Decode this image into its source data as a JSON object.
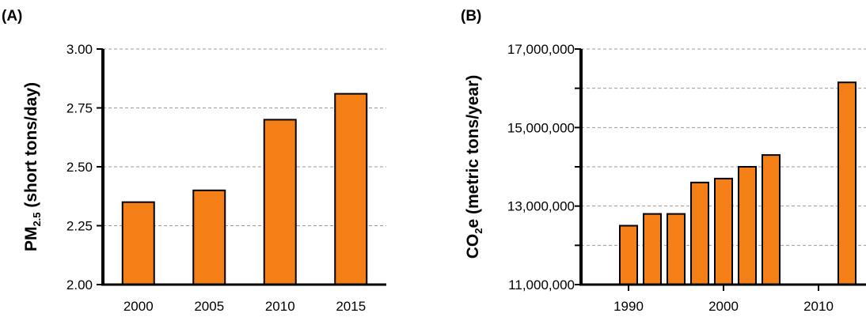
{
  "colors": {
    "bar_fill": "#F57F17",
    "bar_stroke": "#000000",
    "grid": "#999999"
  },
  "chart_data": [
    {
      "type": "bar",
      "panel_label": "(A)",
      "ylabel": {
        "main": "PM",
        "sub": "2.5",
        "rest": " (short tons/day)"
      },
      "xlabel": "",
      "categories": [
        "2000",
        "2005",
        "2010",
        "2015"
      ],
      "values": [
        2.35,
        2.4,
        2.7,
        2.81
      ],
      "ylim": [
        2.0,
        3.0
      ],
      "yticks": [
        2.0,
        2.25,
        2.5,
        2.75,
        3.0
      ],
      "ytick_labels": [
        "2.00",
        "2.25",
        "2.50",
        "2.75",
        "3.00"
      ],
      "grid": true
    },
    {
      "type": "bar",
      "panel_label": "(B)",
      "ylabel": {
        "main": "CO",
        "sub": "2",
        "rest": "e (metric tons/year)"
      },
      "xlabel": "",
      "x": [
        1990,
        1992.5,
        1995,
        1997.5,
        2000,
        2002.5,
        2005,
        2007.5,
        2013
      ],
      "values": [
        12500000,
        12800000,
        12800000,
        13600000,
        13700000,
        14000000,
        14300000,
        null,
        16150000
      ],
      "xlim": [
        1985,
        2015
      ],
      "xticks": [
        1990,
        2000,
        2010
      ],
      "xtick_labels": [
        "1990",
        "2000",
        "2010"
      ],
      "ylim": [
        11000000,
        17000000
      ],
      "yticks": [
        11000000,
        12000000,
        13000000,
        14000000,
        15000000,
        16000000,
        17000000
      ],
      "ytick_labels": [
        "11,000,000",
        "",
        "13,000,000",
        "",
        "15,000,000",
        "",
        "17,000,000"
      ],
      "grid": true
    }
  ]
}
